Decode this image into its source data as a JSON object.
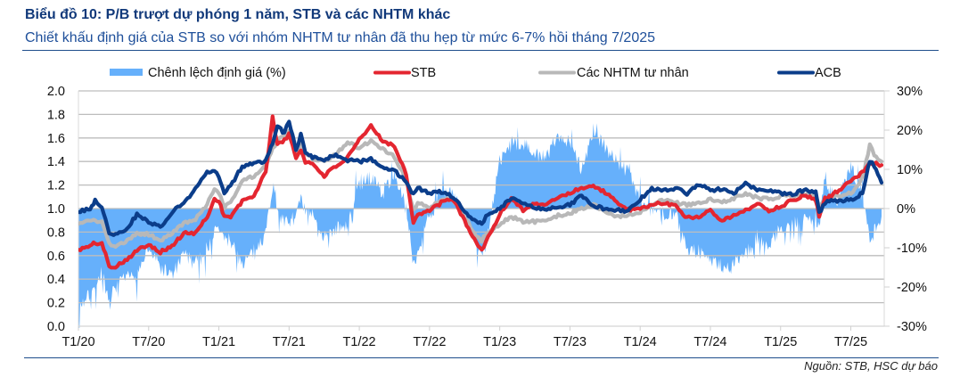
{
  "header": {
    "title": "Biểu đồ 10: P/B trượt dự phóng 1 năm, STB và các NHTM khác",
    "subtitle": "Chiết khấu định giá của STB so với nhóm NHTM tư nhân đã thu hẹp từ mức 6-7% hồi tháng 7/2025"
  },
  "footer": {
    "source": "Nguồn: STB, HSC dự báo"
  },
  "chart_data": {
    "type": "line",
    "title": "Biểu đồ 10: P/B trượt dự phóng 1 năm, STB và các NHTM khác",
    "subtitle": "Chiết khấu định giá của STB so với nhóm NHTM tư nhân đã thu hẹp từ mức 6-7% hồi tháng 7/2025",
    "xlabel": "",
    "ylabel_left": "",
    "ylabel_right": "",
    "grid": true,
    "legend_position": "top",
    "x_range": [
      "2020-01-01",
      "2025-09-27"
    ],
    "x_ticks": {
      "dates": [
        "2020-01-01",
        "2020-07-01",
        "2021-01-01",
        "2021-07-01",
        "2022-01-01",
        "2022-07-01",
        "2023-01-01",
        "2023-07-01",
        "2024-01-01",
        "2024-07-01",
        "2025-01-01",
        "2025-07-01"
      ],
      "labels": [
        "T1/20",
        "T7/20",
        "T1/21",
        "T7/21",
        "T1/22",
        "T7/22",
        "T1/23",
        "T7/23",
        "T1/24",
        "T7/24",
        "T1/25",
        "T7/25"
      ]
    },
    "y_left": {
      "ylim": [
        0,
        2.0
      ],
      "tick_values": [
        2.0,
        1.8,
        1.6,
        1.4,
        1.2,
        1.0,
        0.8,
        0.6,
        0.4,
        0.2,
        0.0
      ],
      "tick_labels": [
        "2.0",
        "1.8",
        "1.6",
        "1.4",
        "1.2",
        "1.0",
        "0.8",
        "0.6",
        "0.4",
        "0.2",
        "0.0"
      ]
    },
    "y_right": {
      "ylim": [
        -30,
        30
      ],
      "tick_values": [
        30,
        20,
        10,
        0,
        -10,
        -20,
        -30
      ],
      "tick_labels": [
        "30%",
        "20%",
        "10%",
        "0%",
        "-10%",
        "-20%",
        "-30%"
      ]
    },
    "x": [
      "2020-01-01",
      "2020-02-01",
      "2020-02-14",
      "2020-03-01",
      "2020-03-20",
      "2020-04-01",
      "2020-05-01",
      "2020-06-01",
      "2020-07-01",
      "2020-08-01",
      "2020-09-01",
      "2020-10-01",
      "2020-11-01",
      "2020-12-01",
      "2020-12-20",
      "2021-01-01",
      "2021-01-15",
      "2021-02-01",
      "2021-03-01",
      "2021-04-01",
      "2021-05-01",
      "2021-05-19",
      "2021-06-01",
      "2021-06-19",
      "2021-07-01",
      "2021-07-19",
      "2021-08-01",
      "2021-08-13",
      "2021-09-01",
      "2021-10-01",
      "2021-11-01",
      "2021-12-01",
      "2022-01-01",
      "2022-02-01",
      "2022-03-01",
      "2022-04-01",
      "2022-05-01",
      "2022-05-20",
      "2022-06-01",
      "2022-07-01",
      "2022-08-01",
      "2022-09-01",
      "2022-10-01",
      "2022-11-01",
      "2022-11-15",
      "2022-12-01",
      "2023-01-01",
      "2023-02-01",
      "2023-03-01",
      "2023-04-01",
      "2023-05-01",
      "2023-06-01",
      "2023-07-01",
      "2023-08-01",
      "2023-09-01",
      "2023-10-01",
      "2023-11-01",
      "2023-12-01",
      "2024-01-01",
      "2024-02-01",
      "2024-03-01",
      "2024-04-01",
      "2024-05-01",
      "2024-06-01",
      "2024-07-01",
      "2024-08-01",
      "2024-09-01",
      "2024-10-01",
      "2024-11-01",
      "2024-12-01",
      "2025-01-01",
      "2025-02-01",
      "2025-03-01",
      "2025-04-01",
      "2025-04-10",
      "2025-04-25",
      "2025-05-01",
      "2025-06-01",
      "2025-07-01",
      "2025-08-01",
      "2025-08-20",
      "2025-09-01",
      "2025-09-20"
    ],
    "series": [
      {
        "name": "Chênh lệch định giá (%)",
        "type": "area",
        "axis": "right",
        "unit": "%",
        "color": "#66b0fb",
        "values": [
          -25,
          -22,
          -20,
          -16,
          -25,
          -21,
          -18,
          -17,
          -10,
          -15,
          -17,
          -12,
          -13,
          -10,
          -6,
          -5,
          -8,
          -8,
          -14,
          -11,
          -6,
          6,
          0,
          -4,
          -3,
          -2,
          2,
          -1,
          -2,
          -7,
          -5,
          -5,
          6,
          8,
          4,
          9,
          0,
          -14,
          -11,
          -2,
          4,
          3,
          -1,
          -9,
          -12,
          -6,
          12,
          16,
          17,
          14,
          13,
          19,
          17,
          10,
          20,
          16,
          12,
          9,
          2,
          0,
          -1,
          -1,
          -10,
          -11,
          -13,
          -15,
          -14,
          -12,
          -7,
          -9,
          -5,
          -4,
          -3,
          -2,
          -5,
          9,
          5,
          2,
          11,
          3,
          -7,
          -5,
          -2
        ]
      },
      {
        "name": "STB",
        "type": "line",
        "axis": "left",
        "color": "#e42630",
        "values": [
          0.65,
          0.68,
          0.71,
          0.7,
          0.52,
          0.5,
          0.56,
          0.64,
          0.7,
          0.63,
          0.68,
          0.79,
          0.79,
          0.93,
          1.08,
          1.07,
          0.93,
          0.93,
          1.06,
          1.11,
          1.31,
          1.77,
          1.55,
          1.58,
          1.63,
          1.43,
          1.5,
          1.4,
          1.38,
          1.28,
          1.36,
          1.43,
          1.58,
          1.7,
          1.58,
          1.53,
          1.3,
          0.88,
          0.95,
          0.98,
          1.05,
          1.08,
          0.9,
          0.7,
          0.65,
          0.75,
          0.95,
          1.09,
          0.99,
          1.04,
          1.03,
          1.1,
          1.13,
          1.18,
          1.19,
          1.14,
          1.05,
          0.99,
          0.99,
          1.04,
          1.04,
          1.03,
          0.92,
          0.93,
          0.99,
          0.9,
          0.94,
          0.98,
          1.05,
          0.98,
          1.02,
          1.07,
          1.11,
          1.08,
          0.93,
          1.1,
          1.09,
          1.16,
          1.23,
          1.31,
          1.39,
          1.39,
          1.37
        ]
      },
      {
        "name": "Các NHTM tư nhân",
        "type": "line",
        "axis": "left",
        "color": "#b8b8b8",
        "values": [
          0.87,
          0.89,
          0.9,
          0.88,
          0.7,
          0.68,
          0.71,
          0.79,
          0.78,
          0.73,
          0.79,
          0.87,
          0.91,
          1.04,
          1.16,
          1.14,
          1.01,
          1.06,
          1.23,
          1.28,
          1.37,
          1.5,
          1.58,
          1.62,
          1.66,
          1.48,
          1.55,
          1.45,
          1.43,
          1.4,
          1.46,
          1.57,
          1.51,
          1.58,
          1.51,
          1.44,
          1.25,
          0.98,
          1.05,
          1.0,
          1.08,
          1.08,
          0.93,
          0.77,
          0.73,
          0.8,
          0.87,
          0.93,
          0.89,
          0.89,
          0.9,
          0.94,
          0.96,
          1.0,
          1.03,
          0.98,
          0.93,
          0.94,
          0.97,
          1.04,
          1.07,
          1.05,
          1.03,
          1.04,
          1.08,
          1.05,
          1.09,
          1.13,
          1.09,
          1.08,
          1.1,
          1.11,
          1.13,
          1.12,
          1.02,
          1.08,
          1.09,
          1.11,
          1.13,
          1.26,
          1.54,
          1.46,
          1.4
        ]
      },
      {
        "name": "ACB",
        "type": "line",
        "axis": "left",
        "color": "#0b3d8a",
        "values": [
          0.97,
          1.0,
          1.07,
          1.02,
          0.8,
          0.77,
          0.81,
          0.95,
          0.89,
          0.84,
          0.97,
          1.05,
          1.17,
          1.31,
          1.33,
          1.27,
          1.13,
          1.19,
          1.36,
          1.38,
          1.4,
          1.55,
          1.7,
          1.64,
          1.75,
          1.49,
          1.63,
          1.47,
          1.44,
          1.42,
          1.45,
          1.41,
          1.4,
          1.42,
          1.36,
          1.32,
          1.23,
          1.12,
          1.18,
          1.13,
          1.14,
          1.1,
          0.98,
          0.88,
          0.88,
          0.95,
          1.0,
          1.09,
          1.04,
          1.01,
          0.99,
          1.01,
          1.03,
          1.11,
          1.03,
          0.99,
          0.99,
          0.98,
          1.08,
          1.17,
          1.16,
          1.17,
          1.13,
          1.21,
          1.16,
          1.16,
          1.13,
          1.22,
          1.16,
          1.16,
          1.13,
          1.12,
          1.16,
          1.14,
          0.96,
          1.05,
          1.06,
          1.07,
          1.07,
          1.13,
          1.41,
          1.36,
          1.22
        ]
      }
    ]
  }
}
